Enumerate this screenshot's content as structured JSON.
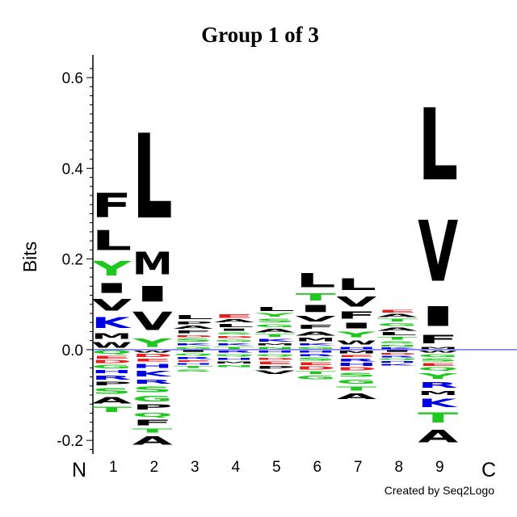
{
  "chart_data": {
    "type": "sequence-logo",
    "title": "Group 1 of 3",
    "ylabel": "Bits",
    "ylim": [
      -0.23,
      0.65
    ],
    "yticks": [
      -0.2,
      0.0,
      0.2,
      0.4,
      0.6
    ],
    "ytick_labels": [
      "-0.2",
      "0.0",
      "0.2",
      "0.4",
      "0.6"
    ],
    "n_terminal_label": "N",
    "c_terminal_label": "C",
    "credit": "Created by Seq2Logo",
    "colors": {
      "hydrophobic": "#000000",
      "polar": "#1ec81e",
      "basic": "#0000e6",
      "acidic": "#e61e1e"
    },
    "residue_classes": {
      "A": "hydrophobic",
      "V": "hydrophobic",
      "L": "hydrophobic",
      "I": "hydrophobic",
      "M": "hydrophobic",
      "F": "hydrophobic",
      "W": "hydrophobic",
      "P": "hydrophobic",
      "Y": "polar",
      "T": "polar",
      "S": "polar",
      "G": "polar",
      "C": "polar",
      "N": "polar",
      "Q": "polar",
      "K": "basic",
      "R": "basic",
      "H": "basic",
      "D": "acidic",
      "E": "acidic"
    },
    "positions": [
      {
        "label": "1",
        "positive": [
          [
            "W",
            0.02
          ],
          [
            "M",
            0.02
          ],
          [
            "K",
            0.038
          ],
          [
            "V",
            0.04
          ],
          [
            "I",
            0.035
          ],
          [
            "Y",
            0.052
          ],
          [
            "L",
            0.07
          ],
          [
            "F",
            0.085
          ]
        ],
        "negative": [
          [
            "Q",
            0.012
          ],
          [
            "E",
            0.01
          ],
          [
            "D",
            0.01
          ],
          [
            "G",
            0.012
          ],
          [
            "H",
            0.01
          ],
          [
            "R",
            0.015
          ],
          [
            "P",
            0.012
          ],
          [
            "S",
            0.02
          ],
          [
            "A",
            0.022
          ],
          [
            "T",
            0.018
          ]
        ]
      },
      {
        "label": "2",
        "positive": [
          [
            "Y",
            0.03
          ],
          [
            "V",
            0.065
          ],
          [
            "I",
            0.055
          ],
          [
            "M",
            0.08
          ],
          [
            "L",
            0.3
          ]
        ],
        "negative": [
          [
            "W",
            0.008
          ],
          [
            "D",
            0.01
          ],
          [
            "E",
            0.01
          ],
          [
            "H",
            0.015
          ],
          [
            "K",
            0.02
          ],
          [
            "R",
            0.015
          ],
          [
            "S",
            0.02
          ],
          [
            "G",
            0.02
          ],
          [
            "P",
            0.018
          ],
          [
            "Q",
            0.015
          ],
          [
            "F",
            0.02
          ],
          [
            "T",
            0.015
          ],
          [
            "A",
            0.03
          ]
        ]
      },
      {
        "label": "3",
        "positive": [
          [
            "G",
            0.008
          ],
          [
            "K",
            0.008
          ],
          [
            "S",
            0.01
          ],
          [
            "D",
            0.008
          ],
          [
            "F",
            0.01
          ],
          [
            "A",
            0.01
          ],
          [
            "P",
            0.01
          ],
          [
            "L",
            0.015
          ]
        ],
        "negative": [
          [
            "I",
            0.006
          ],
          [
            "Q",
            0.008
          ],
          [
            "R",
            0.008
          ],
          [
            "E",
            0.006
          ],
          [
            "H",
            0.006
          ],
          [
            "T",
            0.008
          ],
          [
            "S",
            0.008
          ]
        ]
      },
      {
        "label": "4",
        "positive": [
          [
            "T",
            0.008
          ],
          [
            "K",
            0.008
          ],
          [
            "G",
            0.008
          ],
          [
            "D",
            0.008
          ],
          [
            "S",
            0.008
          ],
          [
            "I",
            0.008
          ],
          [
            "L",
            0.01
          ],
          [
            "A",
            0.01
          ],
          [
            "E",
            0.012
          ]
        ],
        "negative": [
          [
            "R",
            0.008
          ],
          [
            "Q",
            0.008
          ],
          [
            "H",
            0.008
          ],
          [
            "M",
            0.008
          ],
          [
            "N",
            0.008
          ]
        ]
      },
      {
        "label": "5",
        "positive": [
          [
            "N",
            0.008
          ],
          [
            "M",
            0.008
          ],
          [
            "K",
            0.01
          ],
          [
            "T",
            0.01
          ],
          [
            "A",
            0.012
          ],
          [
            "G",
            0.01
          ],
          [
            "S",
            0.012
          ],
          [
            "Y",
            0.012
          ],
          [
            "L",
            0.015
          ]
        ],
        "negative": [
          [
            "H",
            0.008
          ],
          [
            "Q",
            0.008
          ],
          [
            "D",
            0.008
          ],
          [
            "E",
            0.01
          ],
          [
            "P",
            0.01
          ],
          [
            "V",
            0.012
          ]
        ]
      },
      {
        "label": "6",
        "positive": [
          [
            "G",
            0.008
          ],
          [
            "K",
            0.008
          ],
          [
            "M",
            0.012
          ],
          [
            "A",
            0.015
          ],
          [
            "F",
            0.015
          ],
          [
            "V",
            0.02
          ],
          [
            "I",
            0.025
          ],
          [
            "T",
            0.025
          ],
          [
            "L",
            0.05
          ]
        ],
        "negative": [
          [
            "H",
            0.008
          ],
          [
            "R",
            0.008
          ],
          [
            "S",
            0.01
          ],
          [
            "E",
            0.01
          ],
          [
            "D",
            0.01
          ],
          [
            "T",
            0.01
          ],
          [
            "G",
            0.012
          ]
        ]
      },
      {
        "label": "7",
        "positive": [
          [
            "H",
            0.008
          ],
          [
            "W",
            0.015
          ],
          [
            "Y",
            0.02
          ],
          [
            "I",
            0.02
          ],
          [
            "F",
            0.025
          ],
          [
            "V",
            0.035
          ],
          [
            "L",
            0.04
          ]
        ],
        "negative": [
          [
            "M",
            0.01
          ],
          [
            "E",
            0.008
          ],
          [
            "R",
            0.01
          ],
          [
            "H",
            0.01
          ],
          [
            "D",
            0.01
          ],
          [
            "S",
            0.015
          ],
          [
            "G",
            0.015
          ],
          [
            "T",
            0.015
          ],
          [
            "A",
            0.02
          ]
        ]
      },
      {
        "label": "8",
        "positive": [
          [
            "K",
            0.006
          ],
          [
            "N",
            0.006
          ],
          [
            "S",
            0.008
          ],
          [
            "T",
            0.01
          ],
          [
            "L",
            0.01
          ],
          [
            "A",
            0.01
          ],
          [
            "G",
            0.01
          ],
          [
            "T",
            0.01
          ],
          [
            "A",
            0.01
          ],
          [
            "E",
            0.01
          ]
        ],
        "negative": [
          [
            "I",
            0.006
          ],
          [
            "D",
            0.006
          ],
          [
            "R",
            0.006
          ],
          [
            "Q",
            0.006
          ],
          [
            "H",
            0.006
          ],
          [
            "K",
            0.006
          ]
        ]
      },
      {
        "label": "9",
        "positive": [
          [
            "M",
            0.008
          ],
          [
            "F",
            0.03
          ],
          [
            "I",
            0.07
          ],
          [
            "V",
            0.215
          ],
          [
            "L",
            0.255
          ]
        ],
        "negative": [
          [
            "W",
            0.008
          ],
          [
            "G",
            0.01
          ],
          [
            "S",
            0.01
          ],
          [
            "E",
            0.01
          ],
          [
            "Q",
            0.01
          ],
          [
            "Y",
            0.02
          ],
          [
            "R",
            0.02
          ],
          [
            "M",
            0.015
          ],
          [
            "K",
            0.03
          ],
          [
            "T",
            0.035
          ],
          [
            "A",
            0.045
          ]
        ]
      }
    ]
  }
}
